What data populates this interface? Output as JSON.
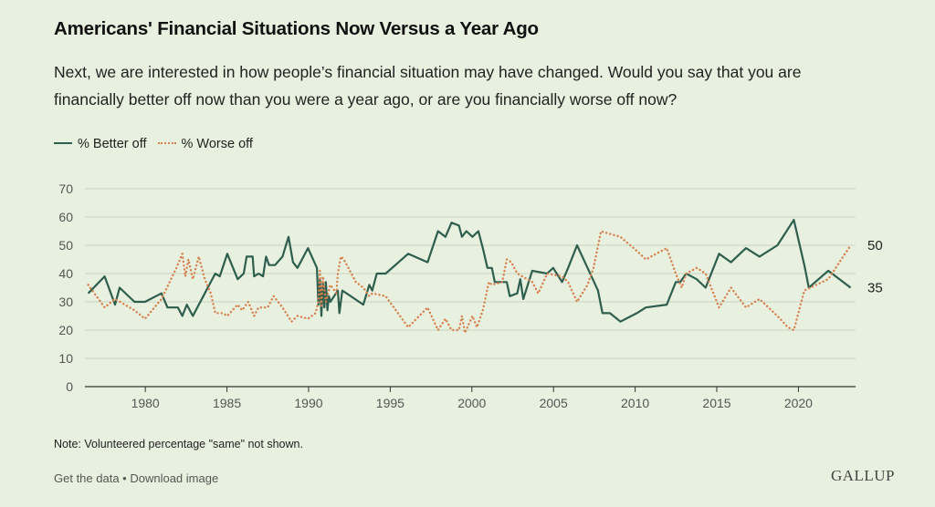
{
  "title": "Americans' Financial Situations Now Versus a Year Ago",
  "subtitle": "Next, we are interested in how people’s financial situation may have changed. Would you say that you are financially better off now than you were a year ago, or are you financially worse off now?",
  "legend": {
    "better": "% Better off",
    "worse": "% Worse off"
  },
  "note": "Note: Volunteered percentage \"same\" not shown.",
  "footer": {
    "get_data": "Get the data",
    "separator": " • ",
    "download": "Download image"
  },
  "logo": "GALLUP",
  "colors": {
    "better": "#2e5e4e",
    "worse": "#d6814e",
    "grid": "#c9d3bf",
    "axis": "#333333"
  },
  "chart_data": {
    "type": "line",
    "ylim": [
      0,
      70
    ],
    "yticks": [
      0,
      10,
      20,
      30,
      40,
      50,
      60,
      70
    ],
    "xlim": [
      1976.3,
      2023.5
    ],
    "xticks": [
      1980,
      1985,
      1990,
      1995,
      2000,
      2005,
      2010,
      2015,
      2020
    ],
    "xlabel": "",
    "ylabel": "",
    "end_labels": {
      "better": "35",
      "worse": "50"
    },
    "series": [
      {
        "name": "% Better off",
        "key": "better",
        "style": "solid",
        "points": [
          [
            1976.5,
            33
          ],
          [
            1977.6,
            39
          ],
          [
            1978.3,
            29
          ],
          [
            1978.6,
            35
          ],
          [
            1979.6,
            30
          ],
          [
            1980.3,
            30
          ],
          [
            1981.4,
            33
          ],
          [
            1981.8,
            28
          ],
          [
            1982.5,
            28
          ],
          [
            1982.8,
            25
          ],
          [
            1983.1,
            29
          ],
          [
            1983.5,
            25
          ],
          [
            1984.3,
            33
          ],
          [
            1984.7,
            37
          ],
          [
            1985,
            40
          ],
          [
            1985.3,
            39
          ],
          [
            1985.8,
            47
          ],
          [
            1986.5,
            38
          ],
          [
            1986.9,
            40
          ],
          [
            1987.1,
            46
          ],
          [
            1987.5,
            46
          ],
          [
            1987.6,
            39
          ],
          [
            1987.9,
            40
          ],
          [
            1988.2,
            39
          ],
          [
            1988.4,
            46
          ],
          [
            1988.6,
            43
          ],
          [
            1989,
            43
          ],
          [
            1989.5,
            46
          ],
          [
            1989.9,
            53
          ],
          [
            1990.2,
            44
          ],
          [
            1990.5,
            42
          ],
          [
            1991.2,
            49
          ],
          [
            1991.8,
            42
          ],
          [
            1991.9,
            29
          ],
          [
            1992,
            38
          ],
          [
            1992.1,
            25
          ],
          [
            1992.2,
            37
          ],
          [
            1992.3,
            28
          ],
          [
            1992.4,
            37
          ],
          [
            1992.5,
            27
          ],
          [
            1992.6,
            32
          ],
          [
            1992.7,
            30
          ],
          [
            1993.2,
            34
          ],
          [
            1993.3,
            26
          ],
          [
            1993.5,
            34
          ],
          [
            1994.9,
            29
          ],
          [
            1995.3,
            36
          ],
          [
            1995.5,
            34
          ],
          [
            1995.8,
            40
          ],
          [
            1996.4,
            40
          ],
          [
            1997.9,
            47
          ],
          [
            1999.2,
            44
          ],
          [
            1999.9,
            55
          ],
          [
            2000.4,
            53
          ],
          [
            2000.8,
            58
          ],
          [
            2001.3,
            57
          ],
          [
            2001.5,
            53
          ],
          [
            2001.8,
            55
          ],
          [
            2002.2,
            53
          ],
          [
            2002.6,
            55
          ],
          [
            2002.9,
            49
          ],
          [
            2003.2,
            42
          ],
          [
            2003.5,
            42
          ],
          [
            2003.7,
            37
          ],
          [
            2004.5,
            37
          ],
          [
            2004.7,
            32
          ],
          [
            2005.2,
            33
          ],
          [
            2005.4,
            38
          ],
          [
            2005.6,
            31
          ],
          [
            2006.2,
            41
          ],
          [
            2007.2,
            40
          ],
          [
            2007.6,
            42
          ],
          [
            2008.2,
            37
          ],
          [
            2008.6,
            42
          ],
          [
            2009.2,
            50
          ],
          [
            2009.9,
            42
          ],
          [
            2010.6,
            34
          ],
          [
            2010.9,
            26
          ],
          [
            2011.4,
            26
          ],
          [
            2012.1,
            23
          ],
          [
            2013.2,
            26
          ],
          [
            2013.8,
            28
          ],
          [
            2015.2,
            29
          ],
          [
            2015.8,
            37
          ],
          [
            2016.1,
            37
          ],
          [
            2016.5,
            40
          ],
          [
            2017.2,
            38
          ],
          [
            2017.8,
            35
          ],
          [
            2018.7,
            47
          ],
          [
            2019.5,
            44
          ],
          [
            2020.5,
            49
          ],
          [
            2021.4,
            46
          ],
          [
            2022.6,
            50
          ],
          [
            2023.7,
            59
          ],
          [
            2024.4,
            43
          ],
          [
            2024.7,
            35
          ],
          [
            2026,
            41
          ],
          [
            2027.5,
            35
          ]
        ]
      },
      {
        "name": "% Worse off",
        "key": "worse",
        "style": "dotted",
        "points": [
          [
            1976.5,
            36
          ],
          [
            1977.6,
            28
          ],
          [
            1978.3,
            31
          ],
          [
            1979.6,
            27
          ],
          [
            1980.3,
            24
          ],
          [
            1981.4,
            31
          ],
          [
            1982.4,
            42
          ],
          [
            1982.8,
            47
          ],
          [
            1983,
            39
          ],
          [
            1983.2,
            45
          ],
          [
            1983.5,
            38
          ],
          [
            1983.9,
            46
          ],
          [
            1984.3,
            38
          ],
          [
            1984.7,
            33
          ],
          [
            1985,
            26
          ],
          [
            1985.5,
            26
          ],
          [
            1985.8,
            25
          ],
          [
            1986.5,
            29
          ],
          [
            1986.8,
            27
          ],
          [
            1987.2,
            30
          ],
          [
            1987.6,
            25
          ],
          [
            1987.9,
            28
          ],
          [
            1988.5,
            28
          ],
          [
            1988.9,
            32
          ],
          [
            1989.5,
            28
          ],
          [
            1990.1,
            23
          ],
          [
            1990.5,
            25
          ],
          [
            1991.2,
            24
          ],
          [
            1991.7,
            26
          ],
          [
            1991.9,
            30
          ],
          [
            1992,
            41
          ],
          [
            1992.1,
            28
          ],
          [
            1992.2,
            39
          ],
          [
            1992.4,
            30
          ],
          [
            1992.7,
            36
          ],
          [
            1993.1,
            33
          ],
          [
            1993.2,
            40
          ],
          [
            1993.4,
            46
          ],
          [
            1993.6,
            45
          ],
          [
            1994.4,
            37
          ],
          [
            1994.9,
            35
          ],
          [
            1995.3,
            32
          ],
          [
            1995.5,
            33
          ],
          [
            1996.4,
            32
          ],
          [
            1997.9,
            21
          ],
          [
            1999.2,
            28
          ],
          [
            1999.9,
            20
          ],
          [
            2000.4,
            24
          ],
          [
            2000.8,
            20
          ],
          [
            2001.3,
            20
          ],
          [
            2001.5,
            25
          ],
          [
            2001.7,
            19
          ],
          [
            2002.2,
            25
          ],
          [
            2002.5,
            21
          ],
          [
            2002.9,
            27
          ],
          [
            2003.3,
            37
          ],
          [
            2003.5,
            36
          ],
          [
            2004.2,
            37
          ],
          [
            2004.5,
            45
          ],
          [
            2004.8,
            44
          ],
          [
            2005.2,
            40
          ],
          [
            2006.2,
            37
          ],
          [
            2006.6,
            33
          ],
          [
            2007.2,
            40
          ],
          [
            2008.2,
            39
          ],
          [
            2008.6,
            37
          ],
          [
            2009.2,
            30
          ],
          [
            2009.9,
            36
          ],
          [
            2010.3,
            42
          ],
          [
            2010.8,
            55
          ],
          [
            2011.4,
            54
          ],
          [
            2012.1,
            53
          ],
          [
            2013.2,
            48
          ],
          [
            2013.8,
            45
          ],
          [
            2015.2,
            49
          ],
          [
            2015.8,
            40
          ],
          [
            2016.2,
            35
          ],
          [
            2016.5,
            40
          ],
          [
            2017.2,
            42
          ],
          [
            2017.8,
            40
          ],
          [
            2018.7,
            28
          ],
          [
            2019.5,
            35
          ],
          [
            2020.5,
            28
          ],
          [
            2021.4,
            31
          ],
          [
            2022.6,
            25
          ],
          [
            2023.3,
            21
          ],
          [
            2023.7,
            20
          ],
          [
            2024.4,
            34
          ],
          [
            2026,
            38
          ],
          [
            2027.5,
            50
          ]
        ]
      }
    ]
  }
}
